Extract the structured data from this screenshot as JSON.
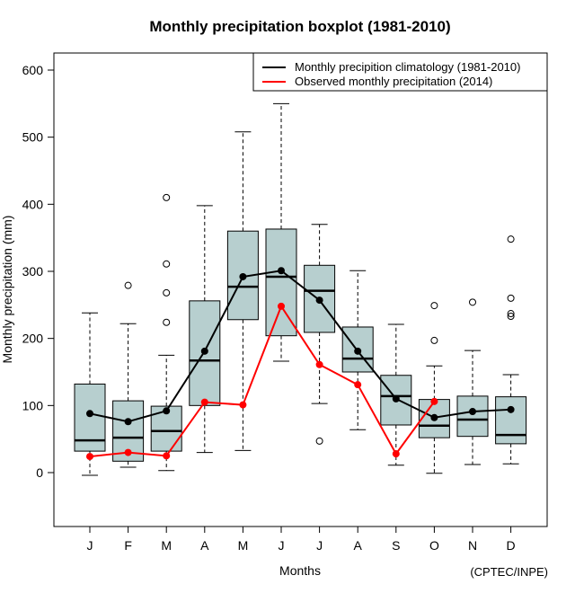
{
  "chart_data": {
    "type": "boxplot",
    "title": "Monthly precipitation boxplot (1981-2010)",
    "xlabel": "Months",
    "ylabel": "Monthly precipitation (mm)",
    "ylim": [
      -80,
      630
    ],
    "yticks": [
      0,
      100,
      200,
      300,
      400,
      500,
      600
    ],
    "ytick_labels": [
      "0",
      "100",
      "200",
      "300",
      "400",
      "500",
      "600"
    ],
    "categories": [
      "J",
      "F",
      "M",
      "A",
      "M",
      "J",
      "J",
      "A",
      "S",
      "O",
      "N",
      "D"
    ],
    "credit": "(CPTEC/INPE)",
    "grid": false,
    "legend_position": "top-right",
    "box_fill": "#b7cfcf",
    "boxes": [
      {
        "whisker_low": -4,
        "q1": 32,
        "median": 48,
        "q3": 132,
        "whisker_high": 238,
        "outliers": []
      },
      {
        "whisker_low": 8,
        "q1": 17,
        "median": 52,
        "q3": 107,
        "whisker_high": 222,
        "outliers": [
          279
        ]
      },
      {
        "whisker_low": 3,
        "q1": 32,
        "median": 62,
        "q3": 99,
        "whisker_high": 175,
        "outliers": [
          410,
          311,
          268,
          224
        ]
      },
      {
        "whisker_low": 30,
        "q1": 100,
        "median": 167,
        "q3": 256,
        "whisker_high": 398,
        "outliers": []
      },
      {
        "whisker_low": 33,
        "q1": 228,
        "median": 277,
        "q3": 360,
        "whisker_high": 508,
        "outliers": []
      },
      {
        "whisker_low": 166,
        "q1": 204,
        "median": 292,
        "q3": 363,
        "whisker_high": 550,
        "outliers": []
      },
      {
        "whisker_low": 103,
        "q1": 209,
        "median": 271,
        "q3": 309,
        "whisker_high": 370,
        "outliers": [
          47
        ]
      },
      {
        "whisker_low": 64,
        "q1": 150,
        "median": 170,
        "q3": 217,
        "whisker_high": 301,
        "outliers": []
      },
      {
        "whisker_low": 11,
        "q1": 71,
        "median": 114,
        "q3": 145,
        "whisker_high": 221,
        "outliers": []
      },
      {
        "whisker_low": -1,
        "q1": 52,
        "median": 70,
        "q3": 109,
        "whisker_high": 159,
        "outliers": [
          249,
          197
        ]
      },
      {
        "whisker_low": 12,
        "q1": 54,
        "median": 79,
        "q3": 114,
        "whisker_high": 182,
        "outliers": [
          254
        ]
      },
      {
        "whisker_low": 13,
        "q1": 43,
        "median": 56,
        "q3": 113,
        "whisker_high": 146,
        "outliers": [
          348,
          260,
          237,
          233
        ]
      }
    ],
    "series": [
      {
        "name": "Monthly precipition climatology (1981-2010)",
        "color": "#000000",
        "values": [
          88,
          76,
          92,
          181,
          292,
          301,
          257,
          181,
          110,
          82,
          91,
          94
        ]
      },
      {
        "name": "Observed monthly precipitation (2014)",
        "color": "#ff0000",
        "values": [
          24,
          30,
          25,
          105,
          101,
          248,
          161,
          131,
          28,
          106,
          null,
          null
        ]
      }
    ]
  }
}
